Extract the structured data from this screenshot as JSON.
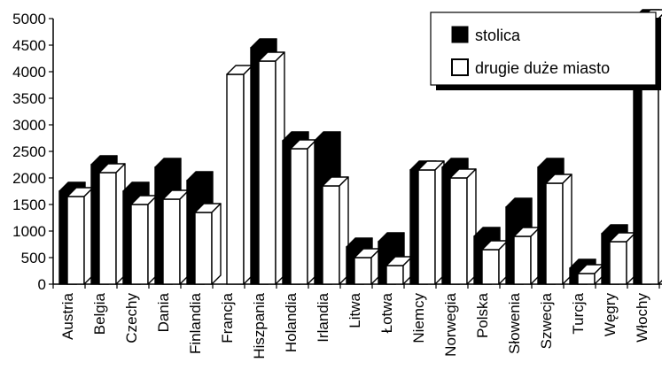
{
  "chart_data": {
    "type": "bar",
    "categories": [
      "Austria",
      "Belgia",
      "Czechy",
      "Dania",
      "Finlandia",
      "Francja",
      "Hiszpania",
      "Holandia",
      "Irlandia",
      "Litwa",
      "Łotwa",
      "Niemcy",
      "Norwegia",
      "Polska",
      "Słowenia",
      "Szwecja",
      "Turcja",
      "Węgry",
      "Włochy"
    ],
    "series": [
      {
        "name": "stolica",
        "values": [
          1750,
          2250,
          1750,
          2200,
          1950,
          0,
          4450,
          2700,
          2700,
          700,
          800,
          2150,
          2200,
          900,
          1450,
          2200,
          300,
          950,
          5000
        ]
      },
      {
        "name": "drugie duże miasto",
        "values": [
          1650,
          2100,
          1500,
          1600,
          1350,
          3950,
          4200,
          2550,
          1850,
          500,
          350,
          2150,
          2000,
          650,
          900,
          1900,
          200,
          800,
          5000
        ]
      }
    ],
    "ylim": [
      0,
      5000
    ],
    "yticks": [
      0,
      500,
      1000,
      1500,
      2000,
      2500,
      3000,
      3500,
      4000,
      4500,
      5000
    ],
    "legend": "top-right",
    "grid": false,
    "style": "3d-column"
  },
  "colors": {
    "stolica": "#000000",
    "drugie duże miasto": "#ffffff"
  }
}
